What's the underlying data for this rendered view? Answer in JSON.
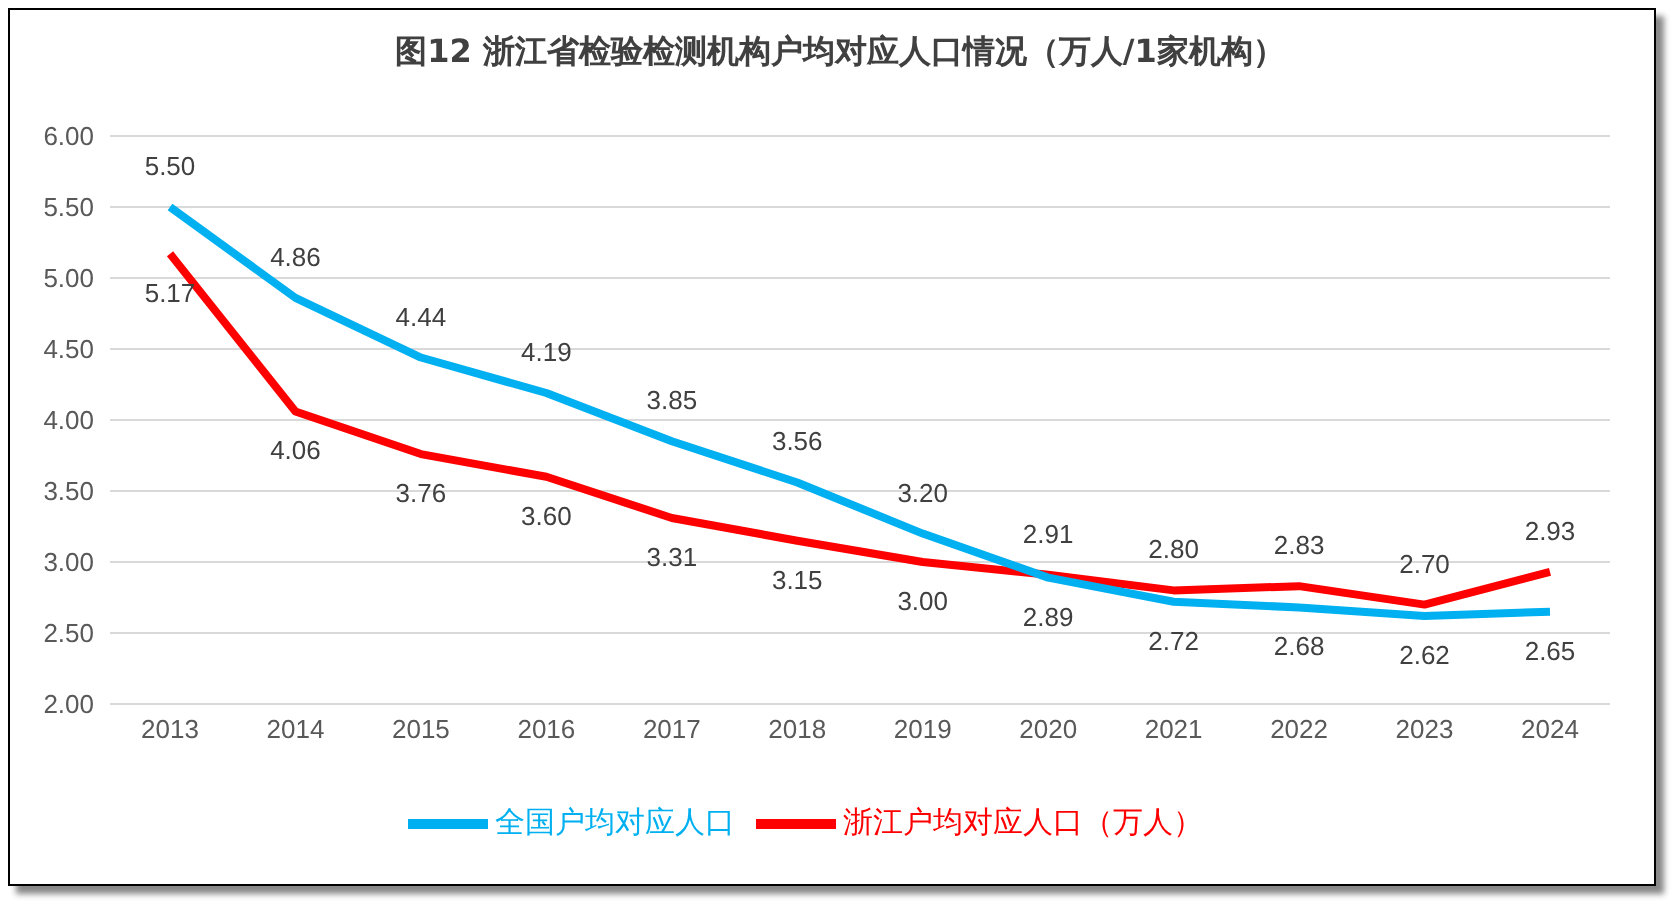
{
  "chart_data": {
    "type": "line",
    "title": "图12  浙江省检验检测机构户均对应人口情况（万人/1家机构）",
    "categories": [
      "2013",
      "2014",
      "2015",
      "2016",
      "2017",
      "2018",
      "2019",
      "2020",
      "2021",
      "2022",
      "2023",
      "2024"
    ],
    "series": [
      {
        "name": "浙江户均对应人口（万人）",
        "color": "#ff0000",
        "values": [
          5.17,
          4.06,
          3.76,
          3.6,
          3.31,
          3.15,
          3.0,
          2.91,
          2.8,
          2.83,
          2.7,
          2.93
        ],
        "value_labels": [
          "5.17",
          "4.06",
          "3.76",
          "3.60",
          "3.31",
          "3.15",
          "3.00",
          "2.91",
          "2.80",
          "2.83",
          "2.70",
          "2.93"
        ]
      },
      {
        "name": "全国户均对应人口",
        "color": "#00b0f0",
        "values": [
          5.5,
          4.86,
          4.44,
          4.19,
          3.85,
          3.56,
          3.2,
          2.89,
          2.72,
          2.68,
          2.62,
          2.65
        ],
        "value_labels": [
          "5.50",
          "4.86",
          "4.44",
          "4.19",
          "3.85",
          "3.56",
          "3.20",
          "2.89",
          "2.72",
          "2.68",
          "2.62",
          "2.65"
        ]
      }
    ],
    "ylim": [
      2,
      6
    ],
    "yticks": [
      {
        "value": 2,
        "label": "2.00"
      },
      {
        "value": 2.5,
        "label": "2.50"
      },
      {
        "value": 3,
        "label": "3.00"
      },
      {
        "value": 3.5,
        "label": "3.50"
      },
      {
        "value": 4,
        "label": "4.00"
      },
      {
        "value": 4.5,
        "label": "4.50"
      },
      {
        "value": 5,
        "label": "5.00"
      },
      {
        "value": 5.5,
        "label": "5.50"
      },
      {
        "value": 6,
        "label": "6.00"
      }
    ],
    "grid": "y",
    "legend": "bottom",
    "marker": "none",
    "line_style": "solid"
  }
}
